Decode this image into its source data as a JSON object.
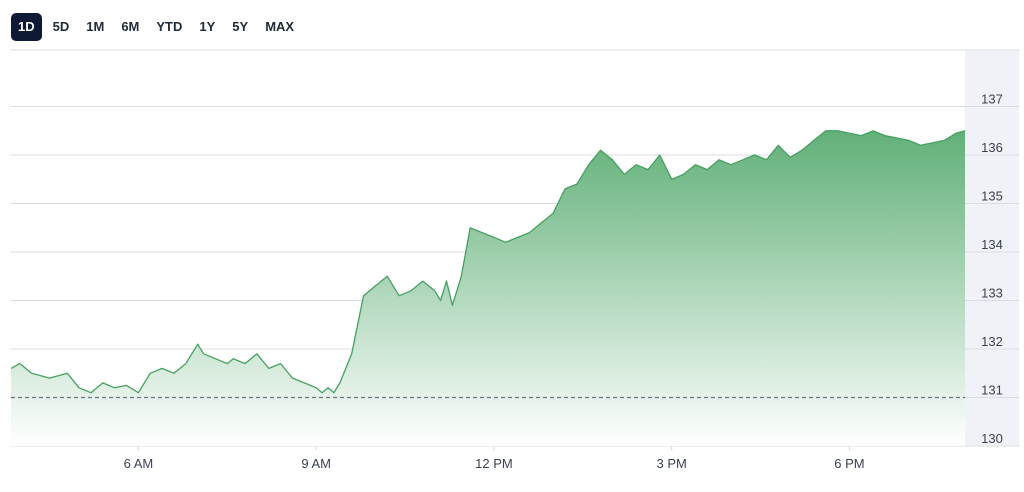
{
  "ranges": [
    "1D",
    "5D",
    "1M",
    "6M",
    "YTD",
    "1Y",
    "5Y",
    "MAX"
  ],
  "active_range": "1D",
  "colors": {
    "line": "#45a160",
    "fill_top": "#5aac72",
    "fill_bottom": "#ffffff",
    "grid": "#d9dde3",
    "ref": "#6b7280",
    "axis_bg": "#f1f2f7",
    "text": "#3a4250"
  },
  "chart_data": {
    "type": "area",
    "x_ticks": [
      "6 AM",
      "9 AM",
      "12 PM",
      "3 PM",
      "6 PM"
    ],
    "x_tick_hours": [
      6,
      9,
      12,
      15,
      18
    ],
    "xlim": [
      3.85,
      19.95
    ],
    "ylim": [
      130,
      138
    ],
    "y_ticks": [
      130,
      131,
      132,
      133,
      134,
      135,
      136,
      137
    ],
    "reference_line": 131.0,
    "grid": "horizontal",
    "axis_side": "right",
    "series": [
      {
        "x": [
          3.85,
          4.0,
          4.2,
          4.5,
          4.8,
          5.0,
          5.2,
          5.4,
          5.6,
          5.8,
          6.0,
          6.2,
          6.4,
          6.6,
          6.8,
          7.0,
          7.1,
          7.3,
          7.5,
          7.6,
          7.8,
          8.0,
          8.2,
          8.4,
          8.6,
          8.8,
          9.0,
          9.1,
          9.2,
          9.3,
          9.4,
          9.5,
          9.6,
          9.7,
          9.8,
          10.0,
          10.2,
          10.4,
          10.6,
          10.8,
          11.0,
          11.1,
          11.2,
          11.3,
          11.45,
          11.6,
          11.8,
          12.0,
          12.2,
          12.4,
          12.6,
          12.8,
          13.0,
          13.2,
          13.4,
          13.6,
          13.8,
          14.0,
          14.2,
          14.4,
          14.6,
          14.8,
          15.0,
          15.2,
          15.4,
          15.6,
          15.8,
          16.0,
          16.2,
          16.4,
          16.6,
          16.8,
          17.0,
          17.2,
          17.4,
          17.6,
          17.8,
          18.0,
          18.2,
          18.4,
          18.6,
          18.8,
          19.0,
          19.2,
          19.4,
          19.6,
          19.8,
          19.95
        ],
        "y": [
          131.6,
          131.7,
          131.5,
          131.4,
          131.5,
          131.2,
          131.1,
          131.3,
          131.2,
          131.25,
          131.1,
          131.5,
          131.6,
          131.5,
          131.7,
          132.1,
          131.9,
          131.8,
          131.7,
          131.8,
          131.7,
          131.9,
          131.6,
          131.7,
          131.4,
          131.3,
          131.2,
          131.1,
          131.2,
          131.1,
          131.3,
          131.6,
          131.9,
          132.5,
          133.1,
          133.3,
          133.5,
          133.1,
          133.2,
          133.4,
          133.2,
          133.0,
          133.4,
          132.9,
          133.5,
          134.5,
          134.4,
          134.3,
          134.2,
          134.3,
          134.4,
          134.6,
          134.8,
          135.3,
          135.4,
          135.8,
          136.1,
          135.9,
          135.6,
          135.8,
          135.7,
          136.0,
          135.5,
          135.6,
          135.8,
          135.7,
          135.9,
          135.8,
          135.9,
          136.0,
          135.9,
          136.2,
          135.95,
          136.1,
          136.3,
          136.5,
          136.5,
          136.45,
          136.4,
          136.5,
          136.4,
          136.35,
          136.3,
          136.2,
          136.25,
          136.3,
          136.45,
          136.5
        ]
      }
    ]
  }
}
